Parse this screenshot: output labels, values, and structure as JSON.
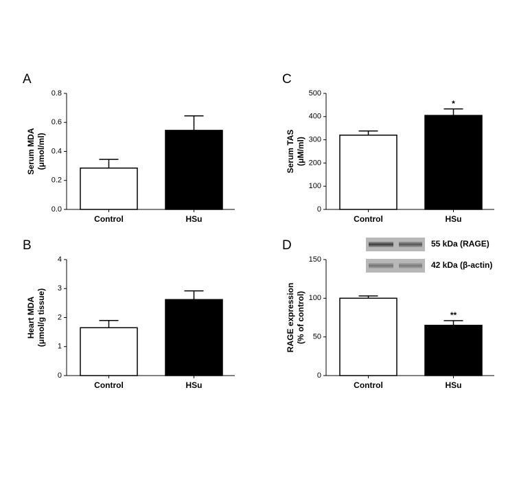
{
  "chart_data": [
    {
      "type": "bar",
      "panel": "A",
      "ylabel": [
        "Serum MDA",
        "(μmol/ml)"
      ],
      "categories": [
        "Control",
        "HSu"
      ],
      "values": [
        0.285,
        0.545
      ],
      "errors": [
        0.06,
        0.1
      ],
      "colors": [
        "#ffffff",
        "#000000"
      ],
      "ylim": [
        0,
        0.8
      ],
      "yticks": [
        {
          "value": 0,
          "label": "0.0"
        },
        0.2,
        0.4,
        0.6,
        0.8
      ]
    },
    {
      "type": "bar",
      "panel": "B",
      "ylabel": [
        "Heart MDA",
        "(μmol/g tissue)"
      ],
      "categories": [
        "Control",
        "HSu"
      ],
      "values": [
        1.65,
        2.62
      ],
      "errors": [
        0.25,
        0.3
      ],
      "colors": [
        "#ffffff",
        "#000000"
      ],
      "ylim": [
        0,
        4
      ],
      "yticks": [
        0,
        1,
        2,
        3,
        4
      ]
    },
    {
      "type": "bar",
      "panel": "C",
      "ylabel": [
        "Serum TAS",
        "(μM/ml)"
      ],
      "categories": [
        "Control",
        "HSu"
      ],
      "values": [
        320,
        405
      ],
      "errors": [
        18,
        28
      ],
      "colors": [
        "#ffffff",
        "#000000"
      ],
      "significance": [
        null,
        "*"
      ],
      "ylim": [
        0,
        500
      ],
      "yticks": [
        0,
        100,
        200,
        300,
        400,
        500
      ]
    },
    {
      "type": "bar",
      "panel": "D",
      "ylabel": [
        "RAGE  expression",
        "(% of control)"
      ],
      "categories": [
        "Control",
        "HSu"
      ],
      "values": [
        100,
        65
      ],
      "errors": [
        3,
        6
      ],
      "colors": [
        "#ffffff",
        "#000000"
      ],
      "significance": [
        null,
        "**"
      ],
      "blot_labels": [
        "55 kDa (RAGE)",
        "42 kDa (β-actin)"
      ],
      "ylim": [
        0,
        150
      ],
      "yticks": [
        0,
        50,
        100,
        150
      ]
    }
  ]
}
